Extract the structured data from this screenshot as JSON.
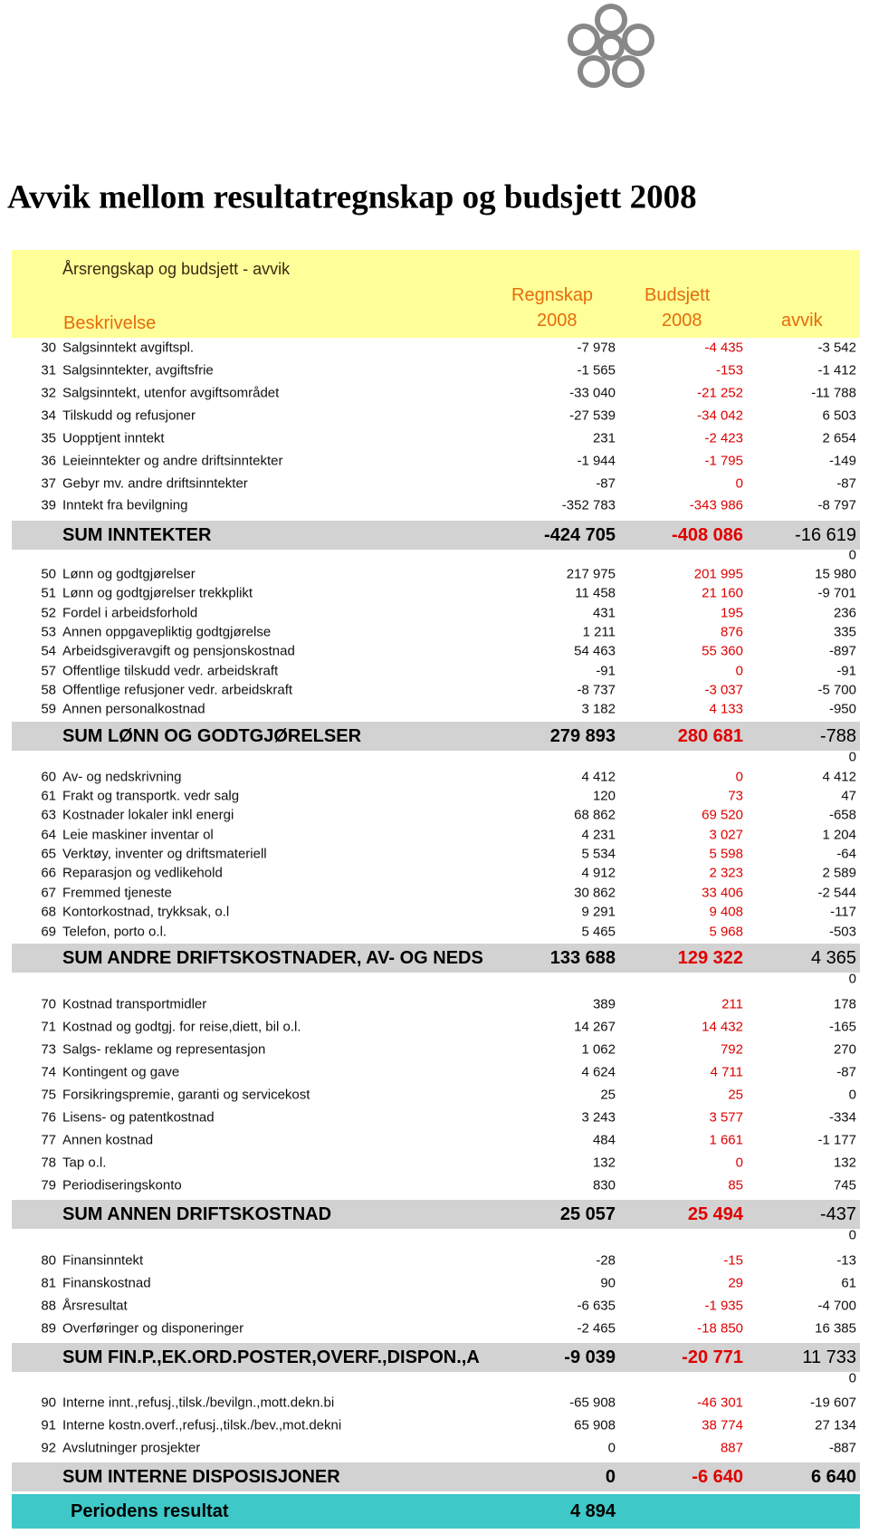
{
  "header": {
    "title": "Avvik mellom resultatregnskap og budsjett 2008",
    "subtitle": "Årsrengskap og budsjett  - avvik",
    "columns": {
      "description": "Beskrivelse",
      "regnskap": [
        "Regnskap",
        "2008"
      ],
      "budsjett": [
        "Budsjett",
        "2008"
      ],
      "avvik": "avvik"
    }
  },
  "sections": [
    {
      "rows": [
        [
          "30",
          "Salgsinntekt avgiftspl.",
          "-7 978",
          "-4 435",
          "-3 542"
        ],
        [
          "31",
          "Salgsinntekter, avgiftsfrie",
          "-1 565",
          "-153",
          "-1 412"
        ],
        [
          "32",
          "Salgsinntekt, utenfor avgiftsområdet",
          "-33 040",
          "-21 252",
          "-11 788"
        ],
        [
          "34",
          "Tilskudd og refusjoner",
          "-27 539",
          "-34 042",
          "6 503"
        ],
        [
          "35",
          "Uopptjent inntekt",
          "231",
          "-2 423",
          "2 654"
        ],
        [
          "36",
          "Leieinntekter og andre driftsinntekter",
          "-1 944",
          "-1 795",
          "-149"
        ],
        [
          "37",
          "Gebyr mv. andre driftsinntekter",
          "-87",
          "0",
          "-87"
        ],
        [
          "39",
          "Inntekt fra bevilgning",
          "-352 783",
          "-343 986",
          "-8 797"
        ]
      ],
      "sum": [
        "SUM INNTEKTER",
        "-424 705",
        "-408 086",
        "-16 619"
      ],
      "after": "0"
    },
    {
      "rows": [
        [
          "50",
          "Lønn og godtgjørelser",
          "217 975",
          "201 995",
          "15 980"
        ],
        [
          "51",
          "Lønn og godtgjørelser trekkplikt",
          "11 458",
          "21 160",
          "-9 701"
        ],
        [
          "52",
          "Fordel i arbeidsforhold",
          "431",
          "195",
          "236"
        ],
        [
          "53",
          "Annen oppgavepliktig godtgjørelse",
          "1 211",
          "876",
          "335"
        ],
        [
          "54",
          "Arbeidsgiveravgift og pensjonskostnad",
          "54 463",
          "55 360",
          "-897"
        ],
        [
          "57",
          "Offentlige tilskudd vedr. arbeidskraft",
          "-91",
          "0",
          "-91"
        ],
        [
          "58",
          "Offentlige refusjoner vedr. arbeidskraft",
          "-8 737",
          "-3 037",
          "-5 700"
        ],
        [
          "59",
          "Annen personalkostnad",
          "3 182",
          "4 133",
          "-950"
        ]
      ],
      "sum": [
        "SUM LØNN OG GODTGJØRELSER",
        "279 893",
        "280 681",
        "-788"
      ],
      "after": "0"
    },
    {
      "rows": [
        [
          "60",
          "Av- og nedskrivning",
          "4 412",
          "0",
          "4 412"
        ],
        [
          "61",
          "Frakt og transportk. vedr salg",
          "120",
          "73",
          "47"
        ],
        [
          "63",
          "Kostnader lokaler inkl energi",
          "68 862",
          "69 520",
          "-658"
        ],
        [
          "64",
          "Leie maskiner inventar ol",
          "4 231",
          "3 027",
          "1 204"
        ],
        [
          "65",
          "Verktøy, inventer og driftsmateriell",
          "5 534",
          "5 598",
          "-64"
        ],
        [
          "66",
          "Reparasjon og vedlikehold",
          "4 912",
          "2 323",
          "2 589"
        ],
        [
          "67",
          "Fremmed tjeneste",
          "30 862",
          "33 406",
          "-2 544"
        ],
        [
          "68",
          "Kontorkostnad, trykksak, o.l",
          "9 291",
          "9 408",
          "-117"
        ],
        [
          "69",
          "Telefon, porto o.l.",
          "5 465",
          "5 968",
          "-503"
        ]
      ],
      "sum": [
        "SUM ANDRE DRIFTSKOSTNADER, AV- OG NEDS",
        "133 688",
        "129 322",
        "4 365"
      ],
      "after": "0"
    },
    {
      "rows": [
        [
          "70",
          "Kostnad transportmidler",
          "389",
          "211",
          "178"
        ],
        [
          "71",
          "Kostnad og godtgj. for reise,diett, bil o.l.",
          "14 267",
          "14 432",
          "-165"
        ],
        [
          "73",
          "Salgs- reklame og representasjon",
          "1 062",
          "792",
          "270"
        ],
        [
          "74",
          "Kontingent og gave",
          "4 624",
          "4 711",
          "-87"
        ],
        [
          "75",
          "Forsikringspremie, garanti og servicekost",
          "25",
          "25",
          "0"
        ],
        [
          "76",
          "Lisens- og patentkostnad",
          "3 243",
          "3 577",
          "-334"
        ],
        [
          "77",
          "Annen kostnad",
          "484",
          "1 661",
          "-1 177"
        ],
        [
          "78",
          "Tap o.l.",
          "132",
          "0",
          "132"
        ],
        [
          "79",
          "Periodiseringskonto",
          "830",
          "85",
          "745"
        ]
      ],
      "sum": [
        "SUM ANNEN  DRIFTSKOSTNAD",
        "25 057",
        "25 494",
        "-437"
      ],
      "after": "0"
    },
    {
      "rows": [
        [
          "80",
          "Finansinntekt",
          "-28",
          "-15",
          "-13"
        ],
        [
          "81",
          "Finanskostnad",
          "90",
          "29",
          "61"
        ],
        [
          "88",
          "Årsresultat",
          "-6 635",
          "-1 935",
          "-4 700"
        ],
        [
          "89",
          "Overføringer og disponeringer",
          "-2 465",
          "-18 850",
          "16 385"
        ]
      ],
      "sum": [
        "SUM FIN.P.,EK.ORD.POSTER,OVERF.,DISPON.,A",
        "-9 039",
        "-20 771",
        "11 733"
      ],
      "after": "0"
    },
    {
      "rows": [
        [
          "90",
          "Interne innt.,refusj.,tilsk./bevilgn.,mott.dekn.bi",
          "-65 908",
          "-46 301",
          "-19 607"
        ],
        [
          "91",
          "Interne kostn.overf.,refusj.,tilsk./bev.,mot.dekni",
          "65 908",
          "38 774",
          "27 134"
        ],
        [
          "92",
          "Avslutninger prosjekter",
          "0",
          "887",
          "-887"
        ]
      ],
      "sum": [
        "SUM INTERNE DISPOSISJONER",
        "0",
        "-6 640",
        "6 640"
      ]
    }
  ],
  "result": {
    "label": "Periodens resultat",
    "value": "4 894"
  }
}
